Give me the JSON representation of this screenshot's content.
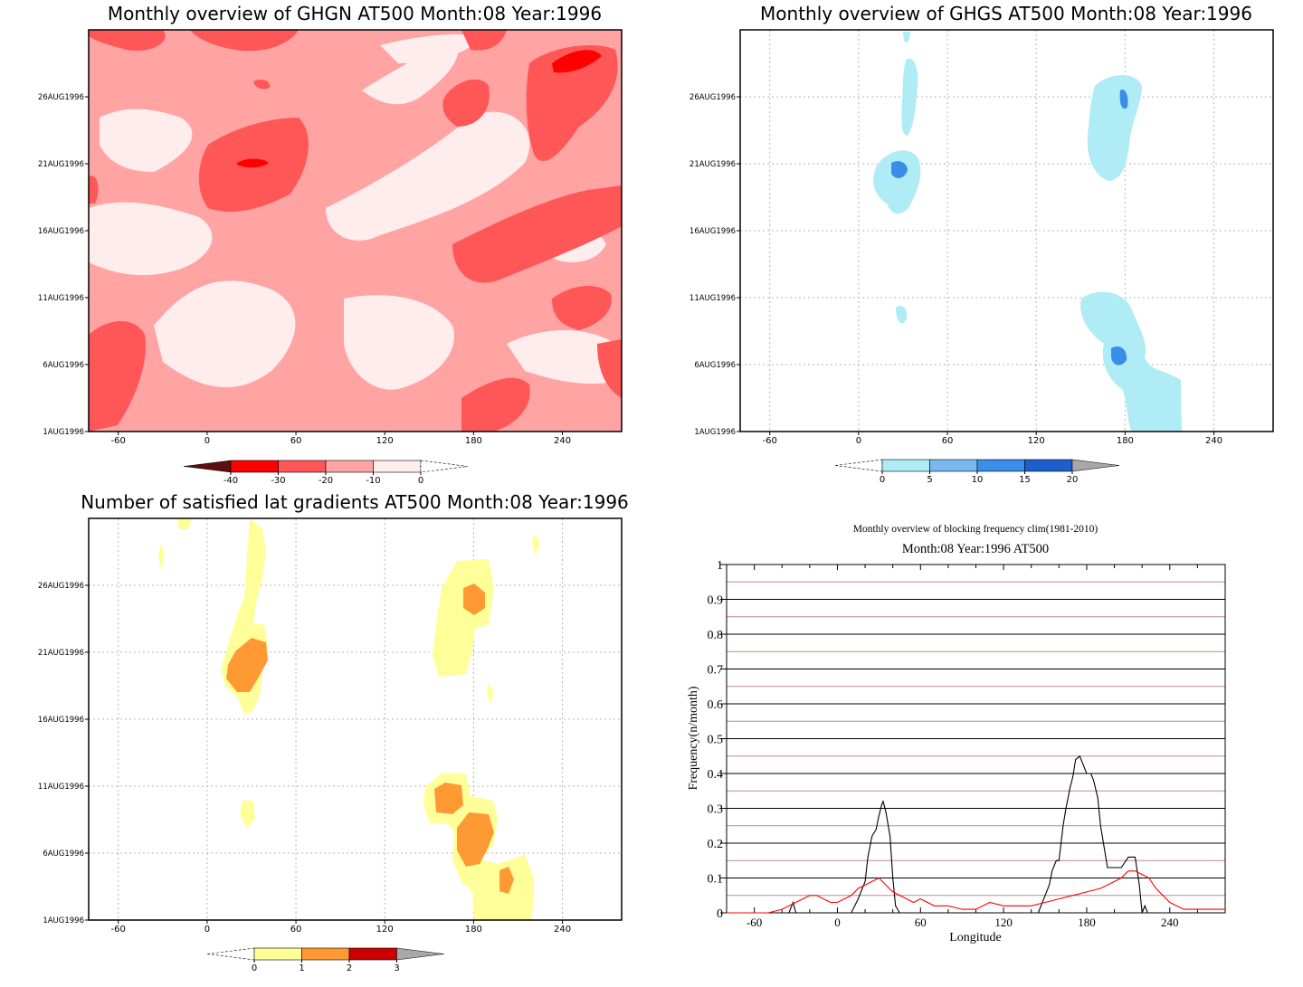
{
  "chart_data": [
    {
      "type": "heatmap",
      "title": "Monthly overview of GHGN AT500 Month:08 Year:1996",
      "x_ticks": [
        "-60",
        "0",
        "60",
        "120",
        "180",
        "240"
      ],
      "y_ticks": [
        "1AUG1996",
        "6AUG1996",
        "11AUG1996",
        "16AUG1996",
        "21AUG1996",
        "26AUG1996"
      ],
      "xlim": [
        -80,
        280
      ],
      "legend_labels": [
        "-40",
        "-30",
        "-20",
        "-10",
        "0"
      ],
      "legend_colors": [
        "#5c0f0f",
        "#ff0000",
        "#ff5757",
        "#ffa3a3",
        "#ffeded"
      ]
    },
    {
      "type": "heatmap",
      "title": "Monthly overview of GHGS AT500 Month:08 Year:1996",
      "x_ticks": [
        "-60",
        "0",
        "60",
        "120",
        "180",
        "240"
      ],
      "y_ticks": [
        "1AUG1996",
        "6AUG1996",
        "11AUG1996",
        "16AUG1996",
        "21AUG1996",
        "26AUG1996"
      ],
      "xlim": [
        -80,
        280
      ],
      "legend_labels": [
        "0",
        "5",
        "10",
        "15",
        "20"
      ],
      "legend_colors": [
        "#b0ecf5",
        "#7bb8f0",
        "#3a8de8",
        "#1c5fcc",
        "#a8a8a8"
      ]
    },
    {
      "type": "heatmap",
      "title": "Number of satisfied lat gradients AT500 Month:08 Year:1996",
      "x_ticks": [
        "-60",
        "0",
        "60",
        "120",
        "180",
        "240"
      ],
      "y_ticks": [
        "1AUG1996",
        "6AUG1996",
        "11AUG1996",
        "16AUG1996",
        "21AUG1996",
        "26AUG1996"
      ],
      "xlim": [
        -80,
        280
      ],
      "legend_labels": [
        "0",
        "1",
        "2",
        "3"
      ],
      "legend_colors": [
        "#ffff99",
        "#ff9933",
        "#cc0000",
        "#a8a8a8"
      ]
    },
    {
      "type": "line",
      "title": "Monthly overview of blocking frequency clim(1981-2010)",
      "subtitle": "Month:08 Year:1996  AT500",
      "xlabel": "Longitude",
      "ylabel": "Frequency(n/month)",
      "x_ticks": [
        "-60",
        "0",
        "60",
        "120",
        "180",
        "240"
      ],
      "y_ticks": [
        "0",
        "0.1",
        "0.2",
        "0.3",
        "0.4",
        "0.5",
        "0.6",
        "0.7",
        "0.8",
        "0.9",
        "1"
      ],
      "xlim": [
        -80,
        280
      ],
      "ylim": [
        0,
        1
      ],
      "series": [
        {
          "color": "#000000",
          "x": [
            -80,
            -40,
            -35,
            -32,
            -30,
            -10,
            -2,
            5,
            10,
            15,
            18,
            20,
            22,
            25,
            28,
            30,
            32,
            33,
            35,
            38,
            40,
            42,
            45,
            50,
            140,
            145,
            150,
            153,
            155,
            158,
            160,
            163,
            165,
            168,
            170,
            172,
            175,
            178,
            180,
            183,
            185,
            188,
            190,
            195,
            200,
            205,
            210,
            215,
            218,
            220,
            222,
            224,
            230,
            280
          ],
          "y": [
            0,
            0,
            0,
            0.03,
            0,
            0,
            0,
            0,
            0,
            0.04,
            0.07,
            0.09,
            0.16,
            0.22,
            0.24,
            0.28,
            0.31,
            0.32,
            0.29,
            0.22,
            0.1,
            0.02,
            0,
            0,
            0,
            0,
            0.05,
            0.08,
            0.12,
            0.15,
            0.15,
            0.25,
            0.3,
            0.36,
            0.39,
            0.44,
            0.45,
            0.42,
            0.4,
            0.4,
            0.38,
            0.33,
            0.25,
            0.13,
            0.13,
            0.13,
            0.16,
            0.16,
            0.08,
            0,
            0.02,
            0,
            0,
            0
          ]
        },
        {
          "color": "#ff0000",
          "x": [
            -80,
            -50,
            -40,
            -30,
            -25,
            -20,
            -15,
            -10,
            -5,
            0,
            5,
            10,
            15,
            20,
            25,
            30,
            35,
            40,
            45,
            50,
            55,
            60,
            70,
            80,
            90,
            100,
            110,
            120,
            130,
            140,
            150,
            160,
            170,
            180,
            190,
            200,
            205,
            210,
            215,
            220,
            225,
            230,
            240,
            250,
            260,
            270,
            280
          ],
          "y": [
            0,
            0,
            0.01,
            0.03,
            0.04,
            0.05,
            0.05,
            0.04,
            0.03,
            0.03,
            0.04,
            0.05,
            0.07,
            0.08,
            0.09,
            0.1,
            0.08,
            0.06,
            0.05,
            0.04,
            0.03,
            0.04,
            0.02,
            0.02,
            0.01,
            0.01,
            0.03,
            0.02,
            0.02,
            0.02,
            0.03,
            0.04,
            0.05,
            0.06,
            0.07,
            0.09,
            0.1,
            0.12,
            0.12,
            0.11,
            0.1,
            0.07,
            0.03,
            0.01,
            0.01,
            0.01,
            0.01
          ]
        }
      ]
    }
  ]
}
